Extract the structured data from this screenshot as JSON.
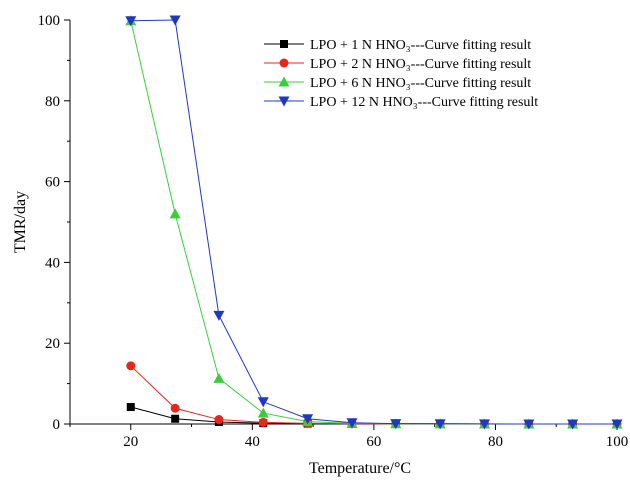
{
  "chart_data": {
    "type": "line",
    "title": "",
    "xlabel": "Temperature/°C",
    "ylabel": "TMR/day",
    "xlim": [
      10,
      100
    ],
    "ylim": [
      0,
      100
    ],
    "x_ticks": [
      20,
      40,
      60,
      80,
      100
    ],
    "y_ticks": [
      0,
      20,
      40,
      60,
      80,
      100
    ],
    "grid": false,
    "legend_position": "top-right",
    "x": [
      20,
      27.3,
      34.5,
      41.8,
      49.1,
      56.4,
      63.6,
      70.9,
      78.2,
      85.5,
      92.7,
      100
    ],
    "series": [
      {
        "name": "LPO + 1 N HNO₃---Curve fitting result",
        "color": "#000000",
        "marker": "square",
        "values": [
          4.2,
          1.3,
          0.5,
          0.2,
          0.1,
          0.05,
          0.03,
          0.02,
          0.01,
          0.01,
          0.0,
          0.0
        ]
      },
      {
        "name": "LPO + 2 N HNO₃---Curve fitting result",
        "color": "#e8261c",
        "marker": "circle",
        "values": [
          14.4,
          3.9,
          1.1,
          0.4,
          0.15,
          0.06,
          0.03,
          0.02,
          0.01,
          0.01,
          0.0,
          0.0
        ]
      },
      {
        "name": "LPO + 6 N HNO₃---Curve fitting result",
        "color": "#3ccd3c",
        "marker": "triangle-up",
        "values": [
          99.8,
          52.0,
          11.3,
          2.7,
          0.6,
          0.15,
          0.05,
          0.02,
          0.01,
          0.0,
          0.0,
          0.0
        ]
      },
      {
        "name": "LPO + 12 N HNO₃---Curve fitting result",
        "color": "#2038c0",
        "marker": "triangle-down",
        "values": [
          99.8,
          100.0,
          26.9,
          5.5,
          1.3,
          0.3,
          0.1,
          0.05,
          0.02,
          0.01,
          0.0,
          0.0
        ]
      }
    ]
  }
}
